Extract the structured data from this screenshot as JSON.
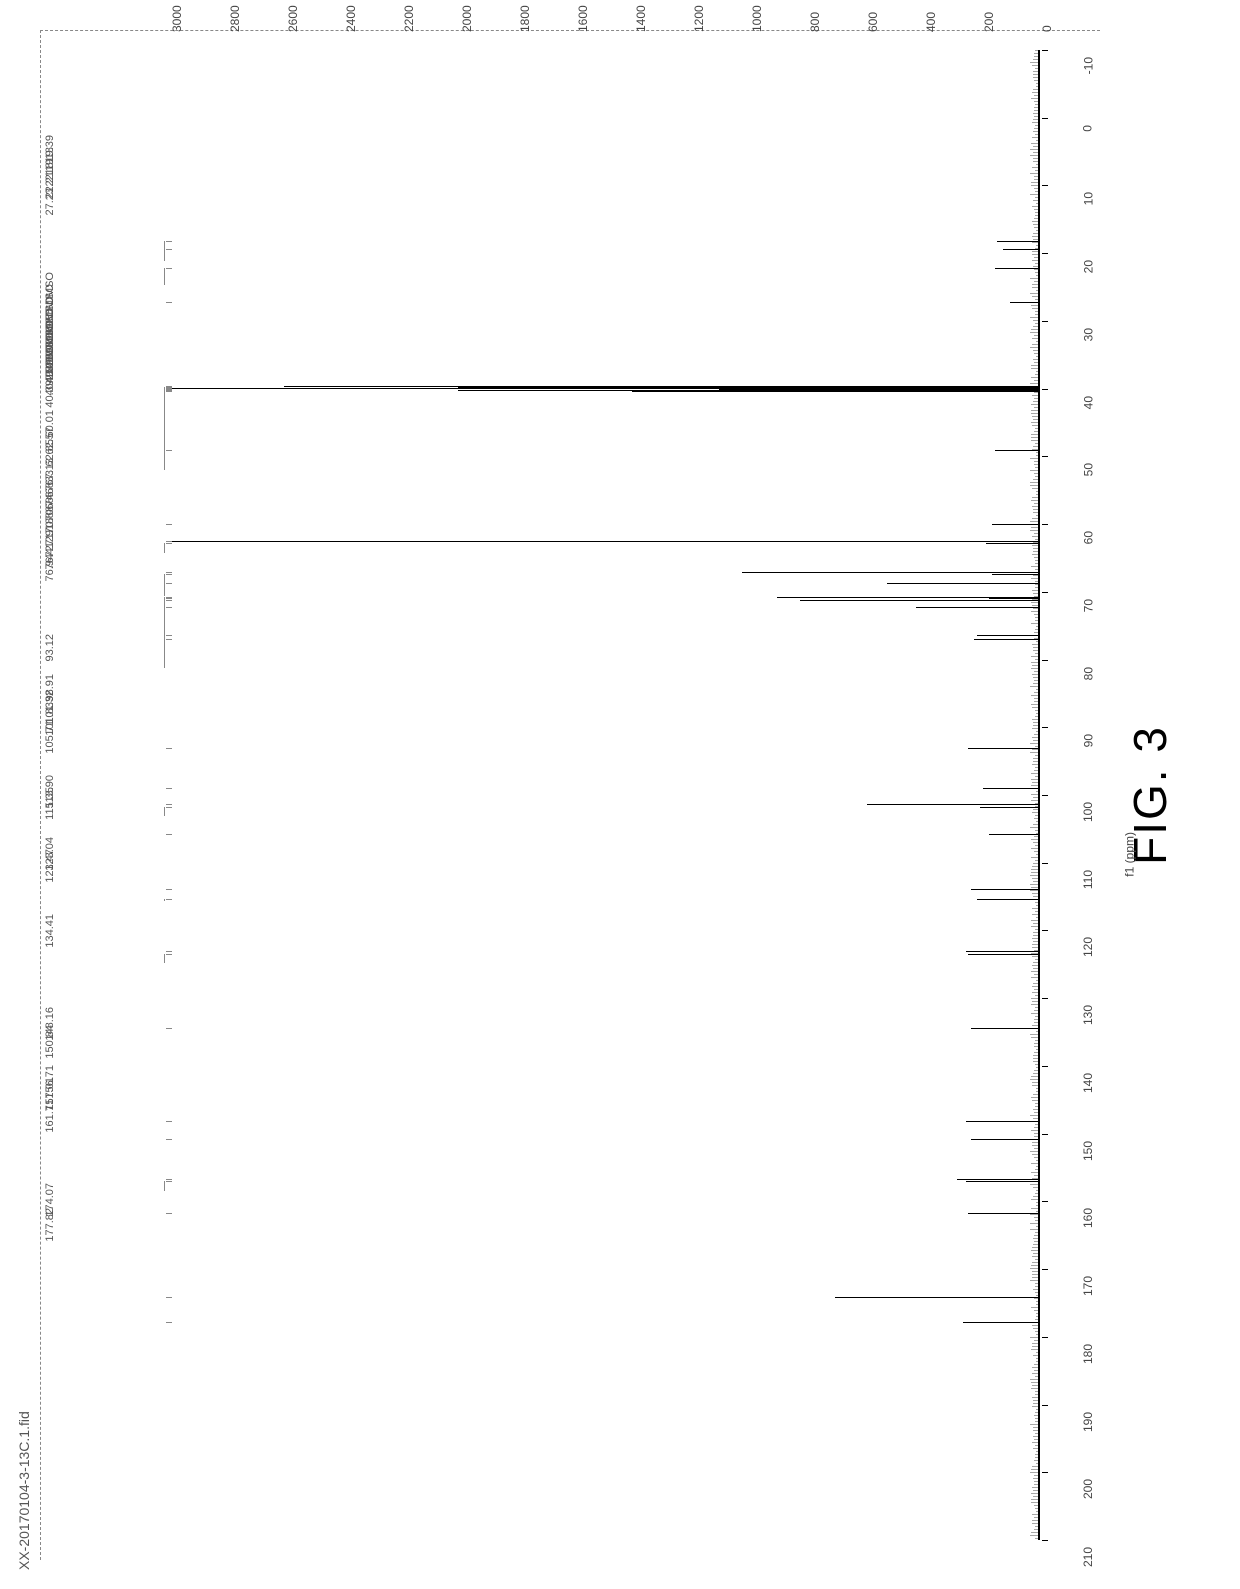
{
  "figure_label": "FIG. 3",
  "sample_name": "XX-20170104-3-13C.1.fid",
  "chart": {
    "type": "nmr-spectrum",
    "nucleus": "13C",
    "background_color": "#ffffff",
    "line_color": "#000000",
    "label_color": "#555555",
    "axis_color": "#444444",
    "grid_style": "dashed",
    "x_axis": {
      "title": "f1 (ppm)",
      "min": -10,
      "max": 210,
      "tick_step": 10,
      "ticks": [
        -10,
        0,
        10,
        20,
        30,
        40,
        50,
        60,
        70,
        80,
        90,
        100,
        110,
        120,
        130,
        140,
        150,
        160,
        170,
        180,
        190,
        200,
        210
      ],
      "label_fontsize": 12
    },
    "y_axis": {
      "title": "",
      "min": 0,
      "max": 3000,
      "tick_step": 200,
      "ticks": [
        0,
        200,
        400,
        600,
        800,
        1000,
        1200,
        1400,
        1600,
        1800,
        2000,
        2200,
        2400,
        2600,
        2800,
        3000
      ],
      "label_fontsize": 12
    },
    "peaks": [
      {
        "ppm": 19.39,
        "intensity": 120
      },
      {
        "ppm": 18.13,
        "intensity": 140
      },
      {
        "ppm": 22.19,
        "intensity": 150
      },
      {
        "ppm": 22.21,
        "intensity": 150
      },
      {
        "ppm": 27.23,
        "intensity": 95
      },
      {
        "ppm": 39.55,
        "intensity": 2600,
        "label_suffix": "DMSO"
      },
      {
        "ppm": 39.69,
        "intensity": 2000,
        "label_suffix": "DMSO"
      },
      {
        "ppm": 39.83,
        "intensity": 1100,
        "label_suffix": "DMSO"
      },
      {
        "ppm": 39.97,
        "intensity": 3000,
        "label_suffix": "DMSO",
        "truncated": true
      },
      {
        "ppm": 40.11,
        "intensity": 1100,
        "label_suffix": "DMSO"
      },
      {
        "ppm": 40.25,
        "intensity": 2000,
        "label_suffix": "DMSO"
      },
      {
        "ppm": 40.39,
        "intensity": 1400,
        "label_suffix": "DMSO"
      },
      {
        "ppm": 49.03,
        "intensity": 150
      },
      {
        "ppm": 60.01,
        "intensity": 160
      },
      {
        "ppm": 62.57,
        "intensity": 3000,
        "truncated": true
      },
      {
        "ppm": 62.85,
        "intensity": 180
      },
      {
        "ppm": 67.13,
        "intensity": 1020
      },
      {
        "ppm": 67.33,
        "intensity": 160
      },
      {
        "ppm": 68.68,
        "intensity": 520
      },
      {
        "ppm": 70.74,
        "intensity": 900
      },
      {
        "ppm": 70.88,
        "intensity": 170
      },
      {
        "ppm": 71.18,
        "intensity": 820
      },
      {
        "ppm": 72.29,
        "intensity": 420
      },
      {
        "ppm": 76.41,
        "intensity": 210
      },
      {
        "ppm": 76.94,
        "intensity": 220
      },
      {
        "ppm": 93.12,
        "intensity": 240
      },
      {
        "ppm": 98.91,
        "intensity": 190
      },
      {
        "ppm": 101.32,
        "intensity": 590
      },
      {
        "ppm": 101.83,
        "intensity": 200
      },
      {
        "ppm": 105.71,
        "intensity": 170
      },
      {
        "ppm": 113.9,
        "intensity": 230
      },
      {
        "ppm": 115.35,
        "intensity": 210
      },
      {
        "ppm": 123.04,
        "intensity": 250
      },
      {
        "ppm": 123.47,
        "intensity": 240
      },
      {
        "ppm": 134.41,
        "intensity": 230
      },
      {
        "ppm": 148.16,
        "intensity": 250
      },
      {
        "ppm": 150.84,
        "intensity": 230
      },
      {
        "ppm": 156.71,
        "intensity": 280
      },
      {
        "ppm": 157.01,
        "intensity": 250
      },
      {
        "ppm": 161.71,
        "intensity": 240
      },
      {
        "ppm": 174.07,
        "intensity": 700
      },
      {
        "ppm": 177.82,
        "intensity": 260
      }
    ],
    "peak_label_fontsize": 11
  }
}
